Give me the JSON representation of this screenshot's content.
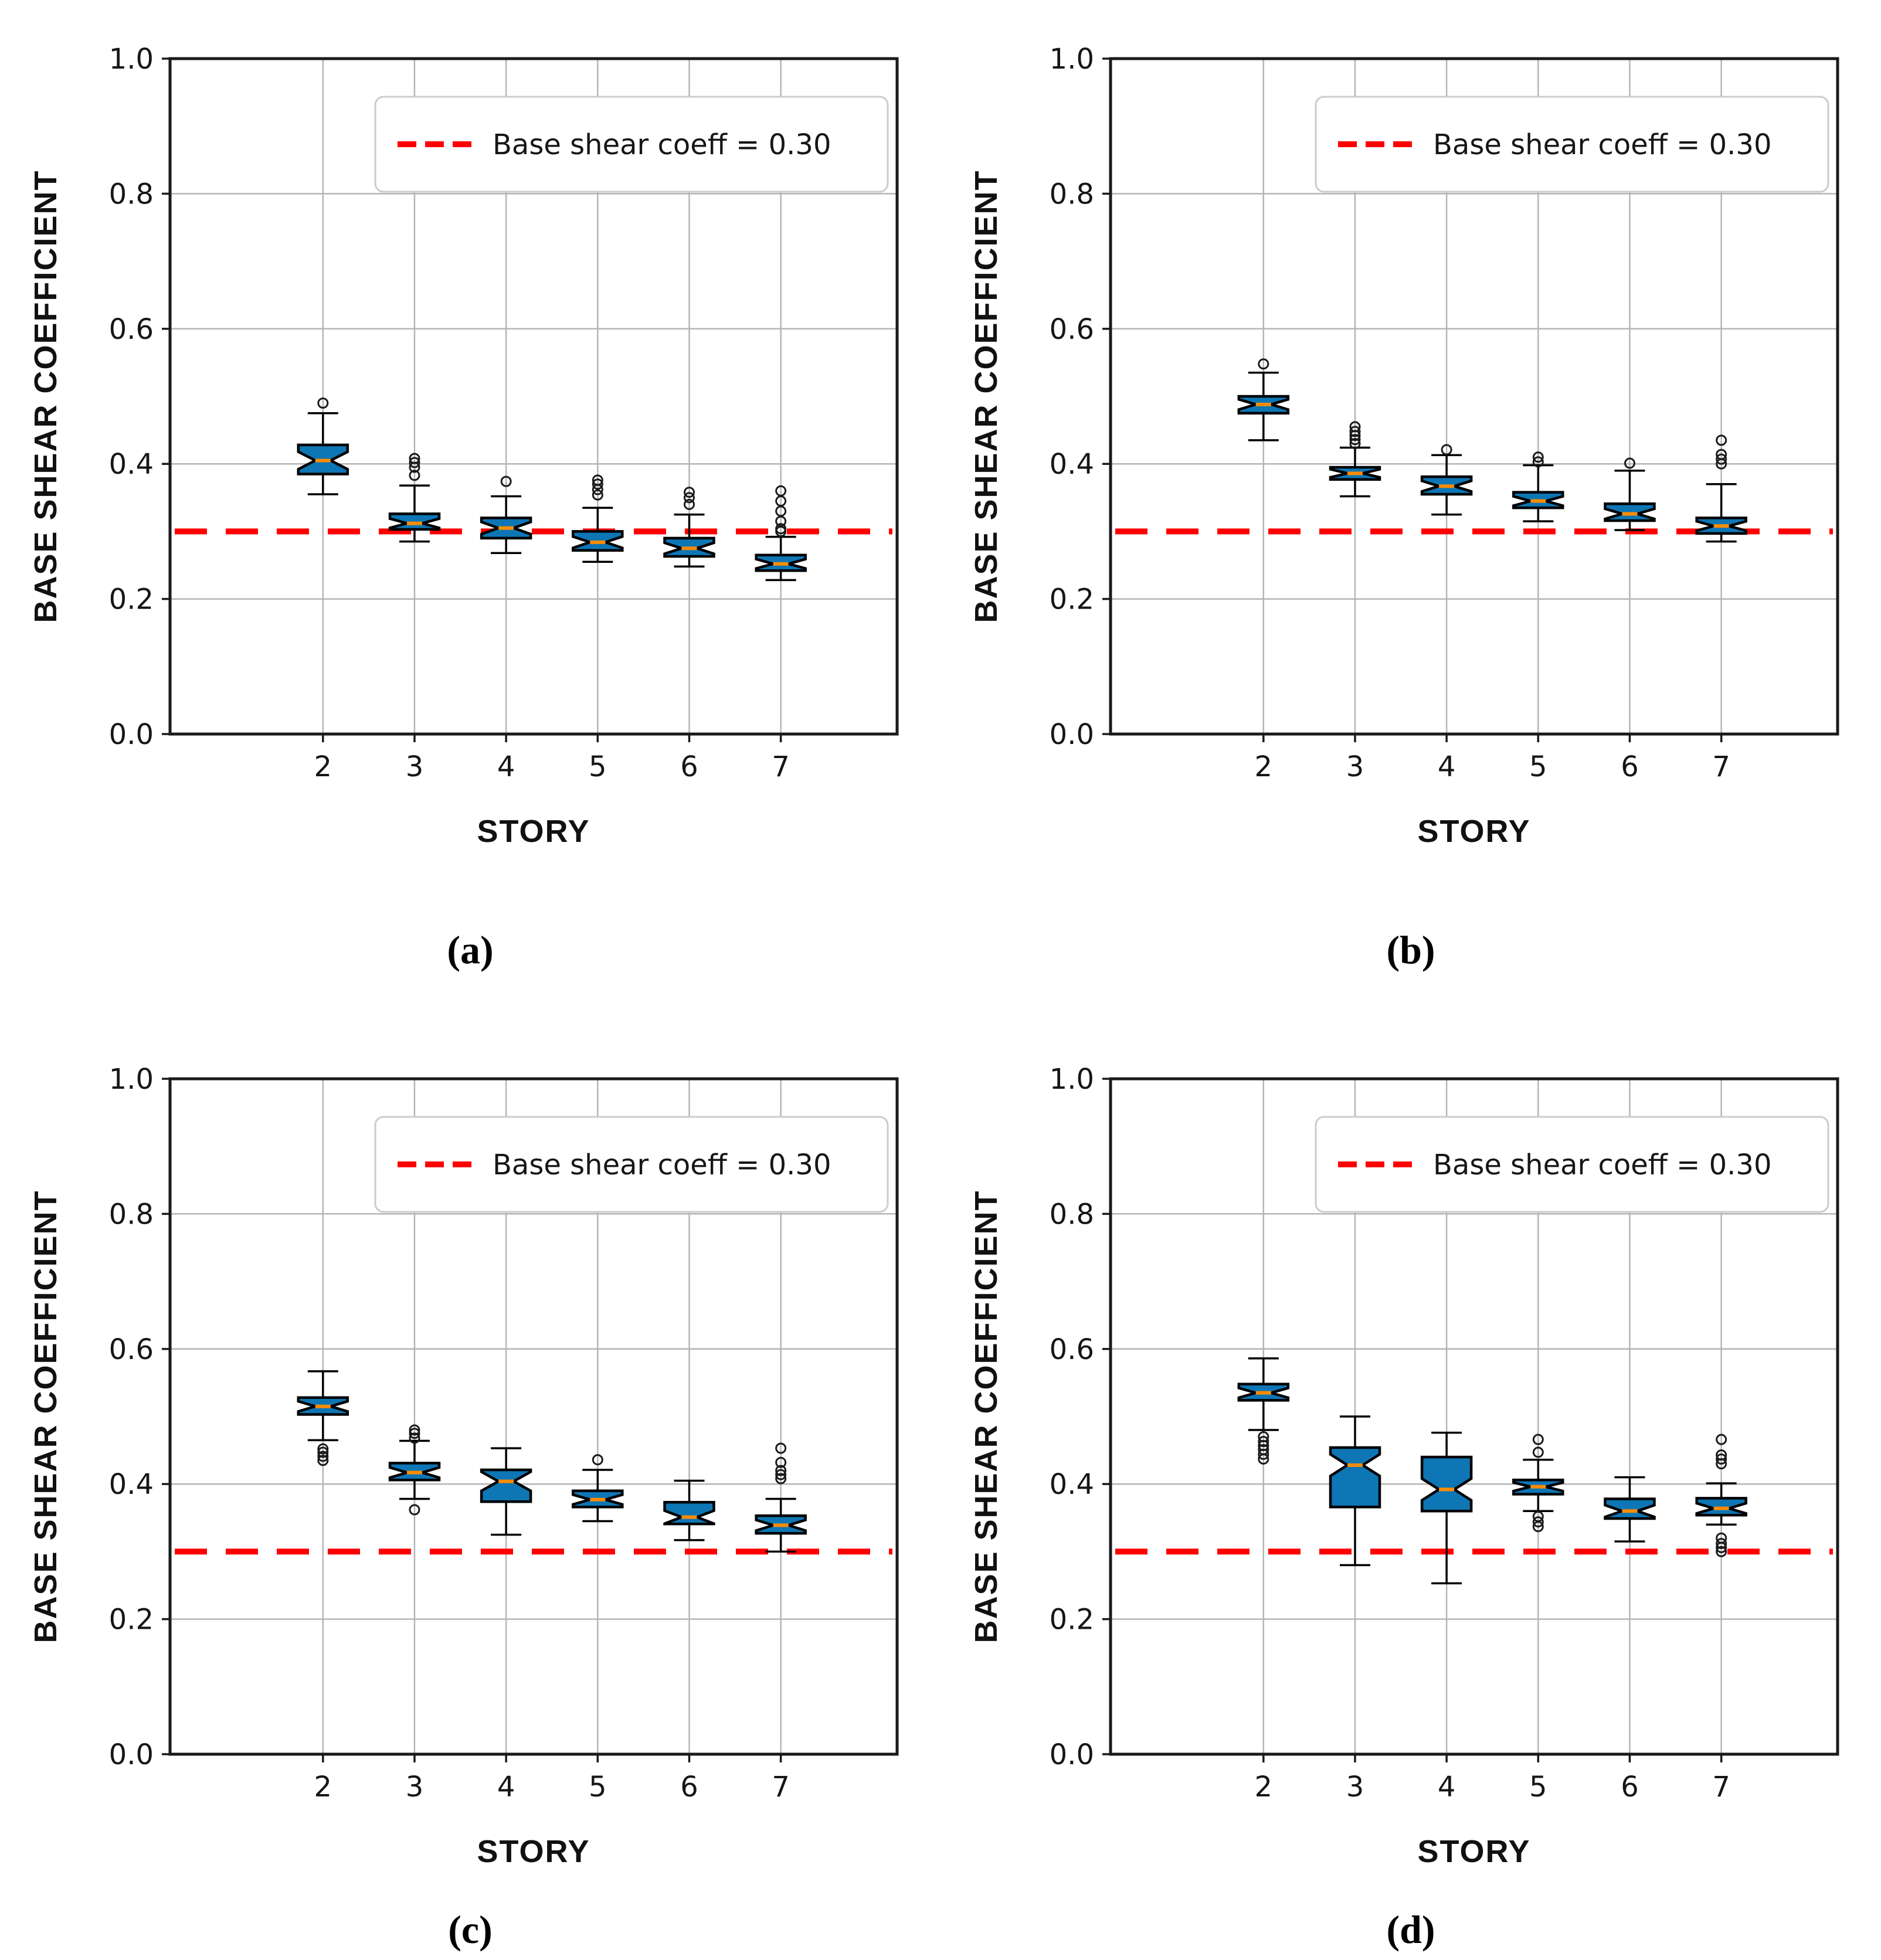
{
  "figure": {
    "background": "#ffffff",
    "panel_captions": [
      "(a)",
      "(b)",
      "(c)",
      "(d)"
    ]
  },
  "styles": {
    "box_fill": "#0e76b4",
    "box_edge": "#000000",
    "median_color": "#ff8c00",
    "whisker_color": "#000000",
    "outlier_edge": "#1a1a1a",
    "grid_color": "#b5b5b5",
    "spine_color": "#1a1a1a",
    "refline_color": "#ff0000",
    "legend_border": "#cccccc"
  },
  "chart_data": [
    {
      "type": "boxplot",
      "panel": "a",
      "caption": "(a)",
      "xlabel": "STORY",
      "ylabel": "BASE SHEAR COEFFICIENT",
      "legend_label": "Base shear coeff = 0.30",
      "legend_position": "upper right",
      "reference_line": {
        "y": 0.3,
        "style": "dashed",
        "color": "#ff0000"
      },
      "ylim": [
        0.0,
        1.0
      ],
      "yticks": [
        0.0,
        0.2,
        0.4,
        0.6,
        0.8,
        1.0
      ],
      "grid": true,
      "categories": [
        2,
        3,
        4,
        5,
        6,
        7
      ],
      "boxes": [
        {
          "story": 2,
          "whislo": 0.355,
          "q1": 0.385,
          "med": 0.405,
          "q3": 0.428,
          "whishi": 0.475,
          "fliers": [
            0.49
          ]
        },
        {
          "story": 3,
          "whislo": 0.285,
          "q1": 0.303,
          "med": 0.312,
          "q3": 0.326,
          "whishi": 0.368,
          "fliers": [
            0.383,
            0.395,
            0.402,
            0.408
          ]
        },
        {
          "story": 4,
          "whislo": 0.268,
          "q1": 0.29,
          "med": 0.305,
          "q3": 0.32,
          "whishi": 0.352,
          "fliers": [
            0.374
          ]
        },
        {
          "story": 5,
          "whislo": 0.255,
          "q1": 0.272,
          "med": 0.284,
          "q3": 0.3,
          "whishi": 0.335,
          "fliers": [
            0.354,
            0.362,
            0.37,
            0.376
          ]
        },
        {
          "story": 6,
          "whislo": 0.248,
          "q1": 0.263,
          "med": 0.275,
          "q3": 0.29,
          "whishi": 0.325,
          "fliers": [
            0.34,
            0.35,
            0.358
          ]
        },
        {
          "story": 7,
          "whislo": 0.228,
          "q1": 0.242,
          "med": 0.252,
          "q3": 0.265,
          "whishi": 0.292,
          "fliers": [
            0.3,
            0.304,
            0.315,
            0.33,
            0.345,
            0.36
          ]
        }
      ]
    },
    {
      "type": "boxplot",
      "panel": "b",
      "caption": "(b)",
      "xlabel": "STORY",
      "ylabel": "BASE SHEAR COEFFICIENT",
      "legend_label": "Base shear coeff = 0.30",
      "legend_position": "upper right",
      "reference_line": {
        "y": 0.3,
        "style": "dashed",
        "color": "#ff0000"
      },
      "ylim": [
        0.0,
        1.0
      ],
      "yticks": [
        0.0,
        0.2,
        0.4,
        0.6,
        0.8,
        1.0
      ],
      "grid": true,
      "categories": [
        2,
        3,
        4,
        5,
        6,
        7
      ],
      "boxes": [
        {
          "story": 2,
          "whislo": 0.435,
          "q1": 0.475,
          "med": 0.488,
          "q3": 0.5,
          "whishi": 0.535,
          "fliers": [
            0.548
          ]
        },
        {
          "story": 3,
          "whislo": 0.352,
          "q1": 0.377,
          "med": 0.386,
          "q3": 0.395,
          "whishi": 0.424,
          "fliers": [
            0.43,
            0.436,
            0.442,
            0.448,
            0.455
          ]
        },
        {
          "story": 4,
          "whislo": 0.325,
          "q1": 0.355,
          "med": 0.367,
          "q3": 0.381,
          "whishi": 0.413,
          "fliers": [
            0.421
          ]
        },
        {
          "story": 5,
          "whislo": 0.315,
          "q1": 0.335,
          "med": 0.345,
          "q3": 0.358,
          "whishi": 0.398,
          "fliers": [
            0.403,
            0.41
          ]
        },
        {
          "story": 6,
          "whislo": 0.302,
          "q1": 0.316,
          "med": 0.326,
          "q3": 0.341,
          "whishi": 0.39,
          "fliers": [
            0.401
          ]
        },
        {
          "story": 7,
          "whislo": 0.285,
          "q1": 0.297,
          "med": 0.308,
          "q3": 0.32,
          "whishi": 0.37,
          "fliers": [
            0.4,
            0.407,
            0.414,
            0.435
          ]
        }
      ]
    },
    {
      "type": "boxplot",
      "panel": "c",
      "caption": "(c)",
      "xlabel": "STORY",
      "ylabel": "BASE SHEAR COEFFICIENT",
      "legend_label": "Base shear coeff = 0.30",
      "legend_position": "upper right",
      "reference_line": {
        "y": 0.3,
        "style": "dashed",
        "color": "#ff0000"
      },
      "ylim": [
        0.0,
        1.0
      ],
      "yticks": [
        0.0,
        0.2,
        0.4,
        0.6,
        0.8,
        1.0
      ],
      "grid": true,
      "categories": [
        2,
        3,
        4,
        5,
        6,
        7
      ],
      "boxes": [
        {
          "story": 2,
          "whislo": 0.465,
          "q1": 0.503,
          "med": 0.515,
          "q3": 0.528,
          "whishi": 0.567,
          "fliers": [
            0.435,
            0.441,
            0.447,
            0.452
          ]
        },
        {
          "story": 3,
          "whislo": 0.378,
          "q1": 0.406,
          "med": 0.417,
          "q3": 0.431,
          "whishi": 0.464,
          "fliers": [
            0.362,
            0.468,
            0.475,
            0.48
          ]
        },
        {
          "story": 4,
          "whislo": 0.325,
          "q1": 0.374,
          "med": 0.404,
          "q3": 0.421,
          "whishi": 0.453,
          "fliers": []
        },
        {
          "story": 5,
          "whislo": 0.345,
          "q1": 0.366,
          "med": 0.377,
          "q3": 0.39,
          "whishi": 0.421,
          "fliers": [
            0.436
          ]
        },
        {
          "story": 6,
          "whislo": 0.317,
          "q1": 0.341,
          "med": 0.351,
          "q3": 0.373,
          "whishi": 0.405,
          "fliers": []
        },
        {
          "story": 7,
          "whislo": 0.3,
          "q1": 0.327,
          "med": 0.339,
          "q3": 0.353,
          "whishi": 0.378,
          "fliers": [
            0.408,
            0.414,
            0.42,
            0.432,
            0.453
          ]
        }
      ]
    },
    {
      "type": "boxplot",
      "panel": "d",
      "caption": "(d)",
      "xlabel": "STORY",
      "ylabel": "BASE SHEAR COEFFICIENT",
      "legend_label": "Base shear coeff = 0.30",
      "legend_position": "upper right",
      "reference_line": {
        "y": 0.3,
        "style": "dashed",
        "color": "#ff0000"
      },
      "ylim": [
        0.0,
        1.0
      ],
      "yticks": [
        0.0,
        0.2,
        0.4,
        0.6,
        0.8,
        1.0
      ],
      "grid": true,
      "categories": [
        2,
        3,
        4,
        5,
        6,
        7
      ],
      "boxes": [
        {
          "story": 2,
          "whislo": 0.48,
          "q1": 0.524,
          "med": 0.535,
          "q3": 0.548,
          "whishi": 0.586,
          "fliers": [
            0.437,
            0.444,
            0.451,
            0.457,
            0.463,
            0.47
          ]
        },
        {
          "story": 3,
          "whislo": 0.28,
          "q1": 0.366,
          "med": 0.428,
          "q3": 0.454,
          "whishi": 0.5,
          "fliers": []
        },
        {
          "story": 4,
          "whislo": 0.253,
          "q1": 0.36,
          "med": 0.392,
          "q3": 0.44,
          "whishi": 0.476,
          "fliers": []
        },
        {
          "story": 5,
          "whislo": 0.36,
          "q1": 0.385,
          "med": 0.396,
          "q3": 0.406,
          "whishi": 0.436,
          "fliers": [
            0.447,
            0.466,
            0.337,
            0.344,
            0.352
          ]
        },
        {
          "story": 6,
          "whislo": 0.315,
          "q1": 0.349,
          "med": 0.36,
          "q3": 0.378,
          "whishi": 0.41,
          "fliers": []
        },
        {
          "story": 7,
          "whislo": 0.34,
          "q1": 0.354,
          "med": 0.364,
          "q3": 0.379,
          "whishi": 0.401,
          "fliers": [
            0.43,
            0.437,
            0.443,
            0.466,
            0.3,
            0.306,
            0.312,
            0.32
          ]
        }
      ]
    }
  ]
}
